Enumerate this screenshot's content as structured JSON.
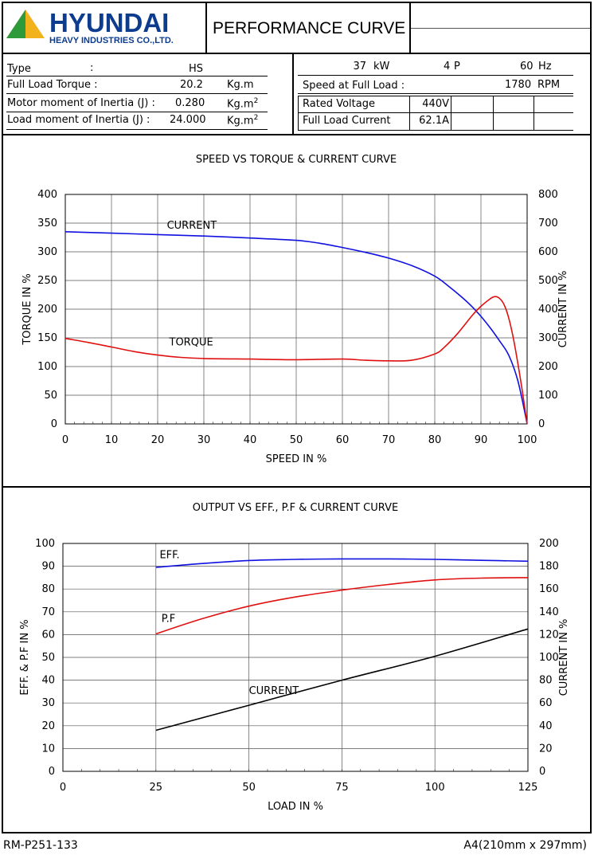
{
  "header": {
    "logo_word": "HYUNDAI",
    "logo_sub": "HEAVY INDUSTRIES CO.,LTD.",
    "title": "PERFORMANCE CURVE",
    "brand_color": "#0d3c8e",
    "triangle_colors": [
      "#2e9a3a",
      "#f2b21b"
    ]
  },
  "specs_left": [
    {
      "label": "Type",
      "sep": ":",
      "value": "HS",
      "unit": ""
    },
    {
      "label": "Full Load Torque :",
      "sep": "",
      "value": "20.2",
      "unit": "Kg.m"
    },
    {
      "label": "Motor moment of Inertia (J) :",
      "sep": "",
      "value": "0.280",
      "unit": "Kg.m",
      "unit_sup": "2"
    },
    {
      "label": "Load moment of Inertia (J) :",
      "sep": "",
      "value": "24.000",
      "unit": "Kg.m",
      "unit_sup": "2"
    }
  ],
  "specs_right": {
    "power": "37",
    "power_unit": "kW",
    "poles": "4",
    "poles_unit": "P",
    "freq": "60",
    "freq_unit": "Hz",
    "speed_label": "Speed at Full Load :",
    "speed_value": "1780",
    "speed_unit": "RPM",
    "voltage_label": "Rated Voltage",
    "voltage_value": "440V",
    "current_label": "Full Load Current",
    "current_value": "62.1A"
  },
  "chart_data": [
    {
      "type": "line",
      "title": "SPEED VS TORQUE & CURRENT CURVE",
      "xlabel": "SPEED IN %",
      "ylabel": "TORQUE IN %",
      "y2label": "CURRENT IN %",
      "xlim": [
        0,
        100
      ],
      "ylim": [
        0,
        400
      ],
      "y2lim": [
        0,
        800
      ],
      "xticks": [
        0,
        10,
        20,
        30,
        40,
        50,
        60,
        70,
        80,
        90,
        100
      ],
      "yticks": [
        0,
        50,
        100,
        150,
        200,
        250,
        300,
        350,
        400
      ],
      "y2ticks": [
        0,
        100,
        200,
        300,
        400,
        500,
        600,
        700,
        800
      ],
      "grid": true,
      "series": [
        {
          "name": "CURRENT",
          "axis": "y2",
          "color": "#1010e0",
          "x": [
            0,
            10,
            20,
            30,
            40,
            50,
            55,
            60,
            65,
            70,
            75,
            80,
            83,
            86,
            88,
            90,
            92,
            94,
            96,
            98,
            100
          ],
          "y": [
            670,
            665,
            660,
            655,
            648,
            640,
            630,
            615,
            598,
            578,
            552,
            515,
            480,
            440,
            410,
            375,
            335,
            290,
            240,
            150,
            0
          ]
        },
        {
          "name": "TORQUE",
          "axis": "y",
          "color": "#e01010",
          "x": [
            0,
            5,
            10,
            15,
            20,
            25,
            30,
            40,
            50,
            60,
            65,
            70,
            75,
            80,
            82,
            85,
            88,
            90,
            92,
            93,
            94,
            95,
            96,
            97,
            98,
            99,
            100
          ],
          "y": [
            149,
            142,
            134,
            126,
            120,
            116,
            114,
            113,
            112,
            113,
            111,
            110,
            111,
            122,
            133,
            158,
            188,
            205,
            218,
            222,
            219,
            208,
            185,
            150,
            105,
            55,
            0
          ]
        }
      ],
      "annotations": [
        "CURRENT",
        "TORQUE"
      ]
    },
    {
      "type": "line",
      "title": "OUTPUT VS EFF., P.F & CURRENT CURVE",
      "xlabel": "LOAD IN %",
      "ylabel": "EFF. & P.F IN %",
      "y2label": "CURRENT IN %",
      "xlim": [
        0,
        125
      ],
      "ylim": [
        0,
        100
      ],
      "y2lim": [
        0,
        200
      ],
      "xticks": [
        0,
        25,
        50,
        75,
        100,
        125
      ],
      "yticks": [
        0,
        10,
        20,
        30,
        40,
        50,
        60,
        70,
        80,
        90,
        100
      ],
      "y2ticks": [
        0,
        20,
        40,
        60,
        80,
        100,
        120,
        140,
        160,
        180,
        200
      ],
      "grid": true,
      "series": [
        {
          "name": "EFF.",
          "axis": "y",
          "color": "#1010e0",
          "x": [
            25,
            37.5,
            50,
            62.5,
            75,
            87.5,
            100,
            112.5,
            125
          ],
          "y": [
            89.5,
            91.2,
            92.5,
            93.0,
            93.2,
            93.2,
            93.0,
            92.6,
            92.2
          ]
        },
        {
          "name": "P.F",
          "axis": "y",
          "color": "#e01010",
          "x": [
            25,
            37.5,
            50,
            62.5,
            75,
            87.5,
            100,
            112.5,
            125
          ],
          "y": [
            60.3,
            67.0,
            72.5,
            76.5,
            79.5,
            82.0,
            84.0,
            84.8,
            85.0
          ]
        },
        {
          "name": "CURRENT",
          "axis": "y2",
          "color": "#000000",
          "x": [
            25,
            50,
            75,
            100,
            125
          ],
          "y": [
            36,
            58,
            80,
            101,
            125
          ]
        }
      ],
      "annotations": [
        "EFF.",
        "P.F",
        "CURRENT"
      ]
    }
  ],
  "footer": {
    "left": "RM-P251-133",
    "right": "A4(210mm x 297mm)"
  }
}
